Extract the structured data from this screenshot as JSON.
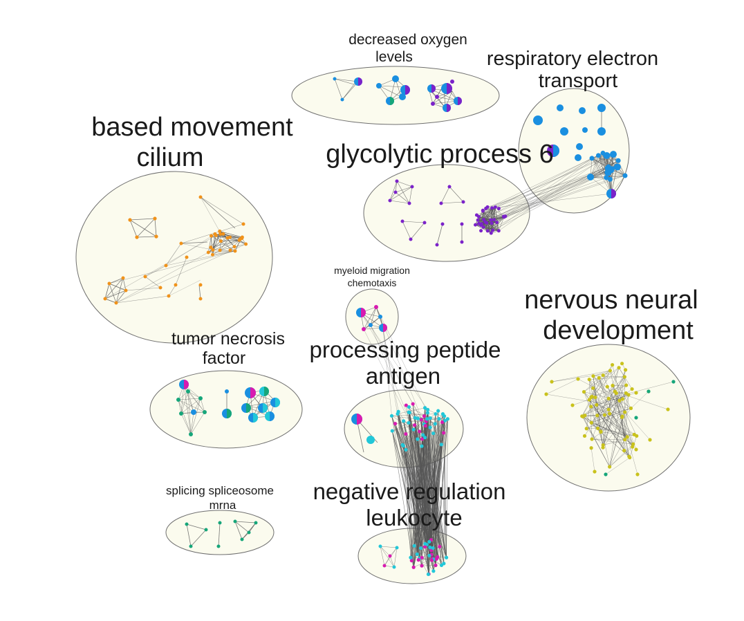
{
  "colors": {
    "cluster_fill": "#fbfbee",
    "cluster_stroke": "#6e6e6e",
    "edge": "#555555",
    "blue": "#1a8fe0",
    "purple": "#7b22c9",
    "magenta": "#d81bb0",
    "cyan": "#22c7d8",
    "green": "#16a67a",
    "orange": "#f0921a",
    "yellow": "#c9c21c"
  },
  "clusters": [
    {
      "id": "cilium",
      "label_lines": [
        "based movement",
        "cilium"
      ]
    },
    {
      "id": "oxygen",
      "label_lines": [
        "decreased oxygen",
        "levels"
      ]
    },
    {
      "id": "respiratory",
      "label_lines": [
        "respiratory electron",
        "transport"
      ]
    },
    {
      "id": "glycolytic",
      "label_lines": [
        "glycolytic process 6"
      ]
    },
    {
      "id": "myeloid",
      "label_lines": [
        "myeloid migration",
        "chemotaxis"
      ]
    },
    {
      "id": "tumor",
      "label_lines": [
        "tumor necrosis",
        "factor"
      ]
    },
    {
      "id": "antigen",
      "label_lines": [
        "processing peptide",
        "antigen"
      ]
    },
    {
      "id": "nervous",
      "label_lines": [
        "nervous neural",
        "development"
      ]
    },
    {
      "id": "splicing",
      "label_lines": [
        "splicing spliceosome",
        "mrna"
      ]
    },
    {
      "id": "leukocyte",
      "label_lines": [
        "negative regulation",
        "leukocyte"
      ]
    }
  ]
}
